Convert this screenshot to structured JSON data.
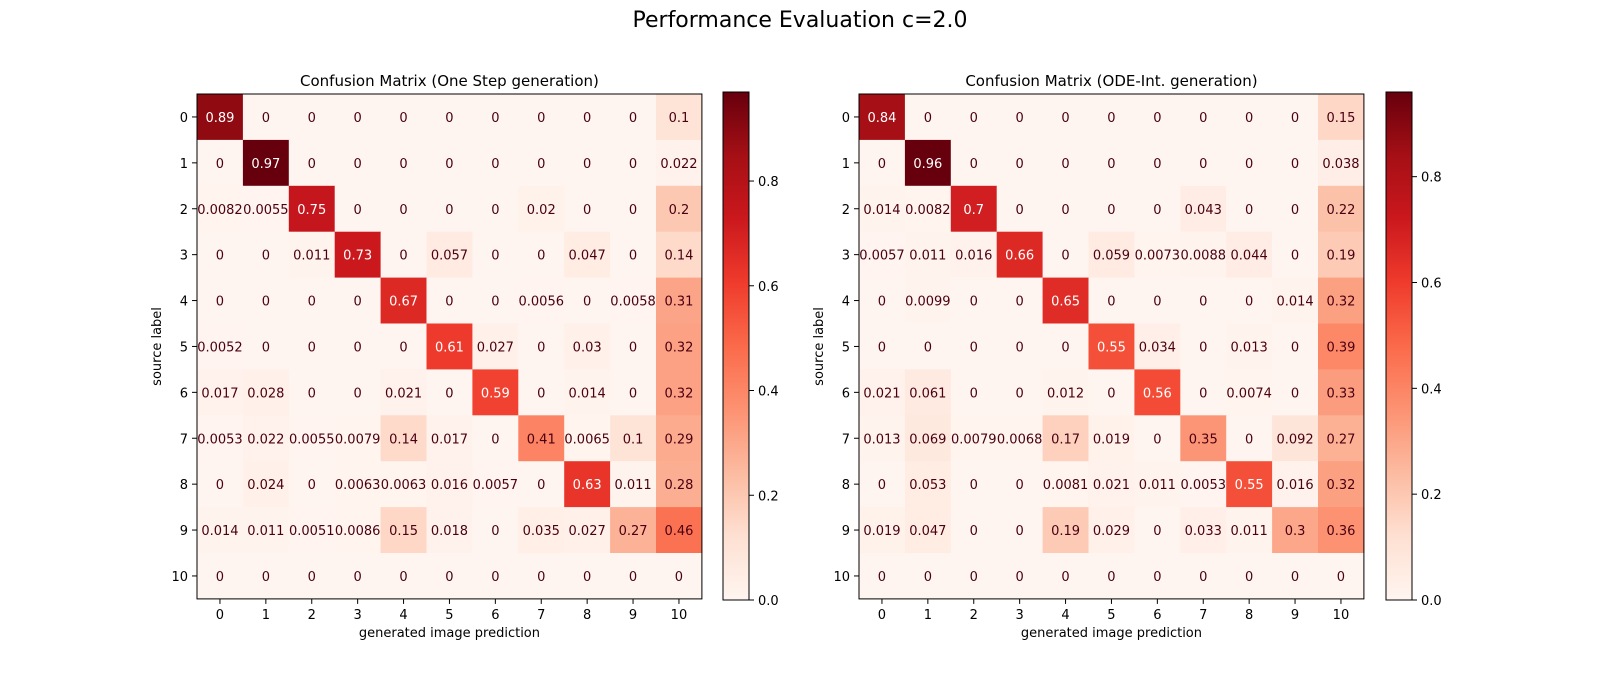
{
  "figure": {
    "title": "Performance Evaluation c=2.0"
  },
  "colorbar_ticks": [
    "0.0",
    "0.2",
    "0.4",
    "0.6",
    "0.8"
  ],
  "chart_data": [
    {
      "type": "heatmap",
      "title": "Confusion Matrix (One Step generation)",
      "xlabel": "generated image prediction",
      "ylabel": "source label",
      "x_categories": [
        "0",
        "1",
        "2",
        "3",
        "4",
        "5",
        "6",
        "7",
        "8",
        "9",
        "10"
      ],
      "y_categories": [
        "0",
        "1",
        "2",
        "3",
        "4",
        "5",
        "6",
        "7",
        "8",
        "9",
        "10"
      ],
      "colormap": "Reds",
      "vmin": 0,
      "vmax": 0.97,
      "colorbar_ticks": [
        0.0,
        0.2,
        0.4,
        0.6,
        0.8
      ],
      "cell_labels": [
        [
          "0.89",
          "0",
          "0",
          "0",
          "0",
          "0",
          "0",
          "0",
          "0",
          "0",
          "0.1"
        ],
        [
          "0",
          "0.97",
          "0",
          "0",
          "0",
          "0",
          "0",
          "0",
          "0",
          "0",
          "0.022"
        ],
        [
          "0.0082",
          "0.0055",
          "0.75",
          "0",
          "0",
          "0",
          "0",
          "0.02",
          "0",
          "0",
          "0.2"
        ],
        [
          "0",
          "0",
          "0.011",
          "0.73",
          "0",
          "0.057",
          "0",
          "0",
          "0.047",
          "0",
          "0.14"
        ],
        [
          "0",
          "0",
          "0",
          "0",
          "0.67",
          "0",
          "0",
          "0.0056",
          "0",
          "0.0058",
          "0.31"
        ],
        [
          "0.0052",
          "0",
          "0",
          "0",
          "0",
          "0.61",
          "0.027",
          "0",
          "0.03",
          "0",
          "0.32"
        ],
        [
          "0.017",
          "0.028",
          "0",
          "0",
          "0.021",
          "0",
          "0.59",
          "0",
          "0.014",
          "0",
          "0.32"
        ],
        [
          "0.0053",
          "0.022",
          "0.0055",
          "0.0079",
          "0.14",
          "0.017",
          "0",
          "0.41",
          "0.0065",
          "0.1",
          "0.29"
        ],
        [
          "0",
          "0.024",
          "0",
          "0.0063",
          "0.0063",
          "0.016",
          "0.0057",
          "0",
          "0.63",
          "0.011",
          "0.28"
        ],
        [
          "0.014",
          "0.011",
          "0.0051",
          "0.0086",
          "0.15",
          "0.018",
          "0",
          "0.035",
          "0.027",
          "0.27",
          "0.46"
        ],
        [
          "0",
          "0",
          "0",
          "0",
          "0",
          "0",
          "0",
          "0",
          "0",
          "0",
          "0"
        ]
      ]
    },
    {
      "type": "heatmap",
      "title": "Confusion Matrix (ODE-Int. generation)",
      "xlabel": "generated image prediction",
      "ylabel": "source label",
      "x_categories": [
        "0",
        "1",
        "2",
        "3",
        "4",
        "5",
        "6",
        "7",
        "8",
        "9",
        "10"
      ],
      "y_categories": [
        "0",
        "1",
        "2",
        "3",
        "4",
        "5",
        "6",
        "7",
        "8",
        "9",
        "10"
      ],
      "colormap": "Reds",
      "vmin": 0,
      "vmax": 0.96,
      "colorbar_ticks": [
        0.0,
        0.2,
        0.4,
        0.6,
        0.8
      ],
      "cell_labels": [
        [
          "0.84",
          "0",
          "0",
          "0",
          "0",
          "0",
          "0",
          "0",
          "0",
          "0",
          "0.15"
        ],
        [
          "0",
          "0.96",
          "0",
          "0",
          "0",
          "0",
          "0",
          "0",
          "0",
          "0",
          "0.038"
        ],
        [
          "0.014",
          "0.0082",
          "0.7",
          "0",
          "0",
          "0",
          "0",
          "0.043",
          "0",
          "0",
          "0.22"
        ],
        [
          "0.0057",
          "0.011",
          "0.016",
          "0.66",
          "0",
          "0.059",
          "0.0073",
          "0.0088",
          "0.044",
          "0",
          "0.19"
        ],
        [
          "0",
          "0.0099",
          "0",
          "0",
          "0.65",
          "0",
          "0",
          "0",
          "0",
          "0.014",
          "0.32"
        ],
        [
          "0",
          "0",
          "0",
          "0",
          "0",
          "0.55",
          "0.034",
          "0",
          "0.013",
          "0",
          "0.39"
        ],
        [
          "0.021",
          "0.061",
          "0",
          "0",
          "0.012",
          "0",
          "0.56",
          "0",
          "0.0074",
          "0",
          "0.33"
        ],
        [
          "0.013",
          "0.069",
          "0.0079",
          "0.0068",
          "0.17",
          "0.019",
          "0",
          "0.35",
          "0",
          "0.092",
          "0.27"
        ],
        [
          "0",
          "0.053",
          "0",
          "0",
          "0.0081",
          "0.021",
          "0.011",
          "0.0053",
          "0.55",
          "0.016",
          "0.32"
        ],
        [
          "0.019",
          "0.047",
          "0",
          "0",
          "0.19",
          "0.029",
          "0",
          "0.033",
          "0.011",
          "0.3",
          "0.36"
        ],
        [
          "0",
          "0",
          "0",
          "0",
          "0",
          "0",
          "0",
          "0",
          "0",
          "0",
          "0"
        ]
      ]
    }
  ]
}
